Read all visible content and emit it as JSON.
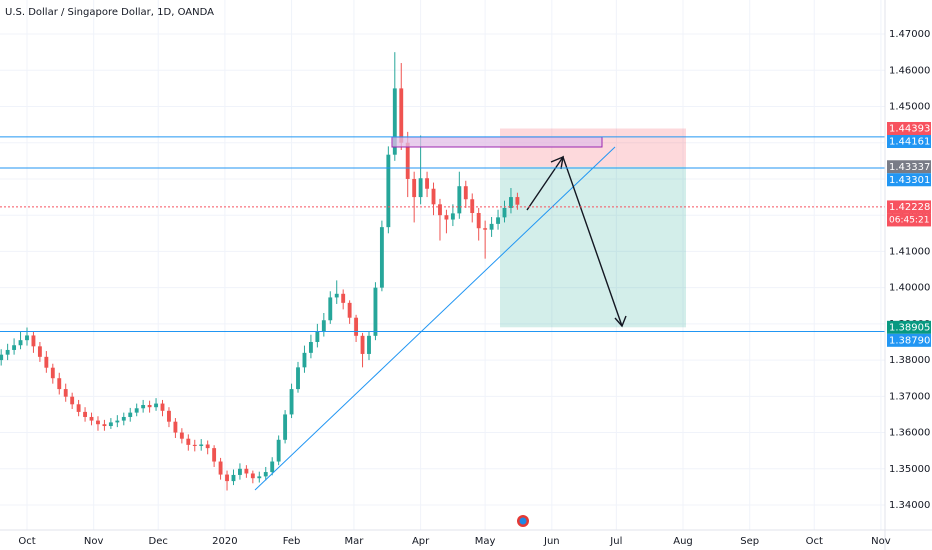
{
  "chart_data": {
    "type": "candlestick",
    "title": "U.S. Dollar / Singapore Dollar, 1D, OANDA",
    "x": [
      -12,
      -9,
      -6,
      -3,
      0,
      3,
      6,
      9,
      12,
      15,
      18,
      21,
      24,
      27,
      30,
      33,
      36,
      39,
      42,
      45,
      48,
      51,
      54,
      57,
      60,
      63,
      66,
      69,
      72,
      75,
      78,
      81,
      84,
      87,
      90,
      93,
      96,
      99,
      102,
      105,
      108,
      111,
      114,
      117,
      120,
      123,
      126,
      129,
      132,
      135,
      138,
      141,
      144,
      147,
      150,
      153,
      156,
      159,
      162,
      165,
      168,
      171,
      174,
      177,
      180,
      183,
      186,
      189,
      192,
      195,
      198,
      201,
      204,
      207,
      210,
      213,
      216,
      219,
      222,
      225,
      228
    ],
    "open": [
      1.38,
      1.3815,
      1.3828,
      1.3841,
      1.3855,
      1.3868,
      1.3838,
      1.3809,
      1.3779,
      1.375,
      1.372,
      1.3699,
      1.3678,
      1.3657,
      1.3643,
      1.3633,
      1.3623,
      1.3618,
      1.3628,
      1.3633,
      1.3643,
      1.3655,
      1.3667,
      1.3676,
      1.367,
      1.368,
      1.366,
      1.363,
      1.36,
      1.3583,
      1.3566,
      1.3563,
      1.3567,
      1.3557,
      1.352,
      1.3484,
      1.3466,
      1.3483,
      1.35,
      1.3487,
      1.3474,
      1.3479,
      1.3491,
      1.352,
      1.358,
      1.365,
      1.372,
      1.378,
      1.382,
      1.385,
      1.388,
      1.391,
      1.3973,
      1.3983,
      1.3958,
      1.3917,
      1.3867,
      1.3817,
      1.3867,
      1.4,
      1.4167,
      1.4367,
      1.455,
      1.44,
      1.43,
      1.425,
      1.4302,
      1.4273,
      1.423,
      1.42,
      1.4188,
      1.4205,
      1.428,
      1.4244,
      1.4206,
      1.4164,
      1.416,
      1.4176,
      1.4194,
      1.422,
      1.425
    ],
    "high": [
      1.383,
      1.3845,
      1.386,
      1.388,
      1.389,
      1.388,
      1.385,
      1.3825,
      1.379,
      1.3765,
      1.3735,
      1.371,
      1.369,
      1.367,
      1.3655,
      1.3645,
      1.3635,
      1.364,
      1.3648,
      1.3655,
      1.3668,
      1.368,
      1.369,
      1.3688,
      1.3695,
      1.369,
      1.367,
      1.364,
      1.3612,
      1.3595,
      1.358,
      1.3582,
      1.3578,
      1.3565,
      1.353,
      1.3495,
      1.3498,
      1.3515,
      1.351,
      1.3495,
      1.3492,
      1.3505,
      1.3532,
      1.3592,
      1.3662,
      1.3735,
      1.3795,
      1.384,
      1.387,
      1.39,
      1.393,
      1.399,
      1.402,
      1.3995,
      1.3965,
      1.3925,
      1.3875,
      1.388,
      1.4015,
      1.4185,
      1.439,
      1.465,
      1.462,
      1.443,
      1.432,
      1.442,
      1.432,
      1.429,
      1.4245,
      1.4215,
      1.423,
      1.432,
      1.4295,
      1.426,
      1.422,
      1.4185,
      1.4195,
      1.4215,
      1.424,
      1.4275,
      1.4262
    ],
    "low": [
      1.3785,
      1.38,
      1.3815,
      1.383,
      1.384,
      1.382,
      1.3795,
      1.3765,
      1.3735,
      1.3705,
      1.3685,
      1.3665,
      1.3645,
      1.363,
      1.362,
      1.3605,
      1.3605,
      1.361,
      1.3615,
      1.362,
      1.363,
      1.3645,
      1.3655,
      1.3655,
      1.366,
      1.3645,
      1.3615,
      1.3585,
      1.357,
      1.355,
      1.3548,
      1.355,
      1.354,
      1.3505,
      1.347,
      1.344,
      1.3455,
      1.347,
      1.3475,
      1.346,
      1.3462,
      1.3468,
      1.3482,
      1.351,
      1.357,
      1.364,
      1.371,
      1.3765,
      1.3805,
      1.3835,
      1.3865,
      1.39,
      1.3955,
      1.394,
      1.39,
      1.385,
      1.378,
      1.38,
      1.3855,
      1.399,
      1.415,
      1.435,
      1.438,
      1.425,
      1.418,
      1.423,
      1.425,
      1.42,
      1.413,
      1.415,
      1.417,
      1.419,
      1.422,
      1.418,
      1.413,
      1.408,
      1.414,
      1.416,
      1.418,
      1.4205,
      1.4215
    ],
    "close": [
      1.3815,
      1.3828,
      1.3841,
      1.3855,
      1.3868,
      1.3838,
      1.3809,
      1.3779,
      1.375,
      1.372,
      1.3699,
      1.3678,
      1.3657,
      1.3643,
      1.3633,
      1.3623,
      1.3618,
      1.3628,
      1.3633,
      1.3643,
      1.3655,
      1.3667,
      1.3676,
      1.367,
      1.368,
      1.366,
      1.363,
      1.36,
      1.3583,
      1.3566,
      1.3563,
      1.3567,
      1.3557,
      1.352,
      1.3484,
      1.3466,
      1.3483,
      1.35,
      1.3487,
      1.3474,
      1.3479,
      1.3491,
      1.352,
      1.358,
      1.365,
      1.372,
      1.378,
      1.382,
      1.385,
      1.388,
      1.391,
      1.3973,
      1.3983,
      1.3958,
      1.3917,
      1.3867,
      1.3817,
      1.3867,
      1.4,
      1.4167,
      1.4367,
      1.455,
      1.44,
      1.43,
      1.425,
      1.4302,
      1.4273,
      1.423,
      1.42,
      1.4188,
      1.4205,
      1.428,
      1.4244,
      1.4206,
      1.4164,
      1.416,
      1.4176,
      1.4194,
      1.422,
      1.425,
      1.4229
    ],
    "up_color": "#26a69a",
    "down_color": "#ef5350",
    "xlim": [
      -12.55,
      398.9
    ],
    "ylim": [
      1.3331,
      1.4794
    ],
    "grid": true,
    "xticks": [
      {
        "value": 0,
        "label": "Oct"
      },
      {
        "value": 31,
        "label": "Nov"
      },
      {
        "value": 61,
        "label": "Dec"
      },
      {
        "value": 92,
        "label": "2020"
      },
      {
        "value": 123,
        "label": "Feb"
      },
      {
        "value": 152,
        "label": "Mar"
      },
      {
        "value": 183,
        "label": "Apr"
      },
      {
        "value": 213,
        "label": "May"
      },
      {
        "value": 244,
        "label": "Jun"
      },
      {
        "value": 274,
        "label": "Jul"
      },
      {
        "value": 305,
        "label": "Aug"
      },
      {
        "value": 336,
        "label": "Sep"
      },
      {
        "value": 366,
        "label": "Oct"
      },
      {
        "value": 397,
        "label": "Nov"
      }
    ],
    "yticks": [
      {
        "value": 1.47,
        "label": "1.47000"
      },
      {
        "value": 1.46,
        "label": "1.46000"
      },
      {
        "value": 1.45,
        "label": "1.45000"
      },
      {
        "value": 1.44,
        "label": "1.44000"
      },
      {
        "value": 1.43,
        "label": "1.43000"
      },
      {
        "value": 1.42,
        "label": "1.42000"
      },
      {
        "value": 1.41,
        "label": "1.41000"
      },
      {
        "value": 1.4,
        "label": "1.40000"
      },
      {
        "value": 1.39,
        "label": "1.39000"
      },
      {
        "value": 1.38,
        "label": "1.38000"
      },
      {
        "value": 1.37,
        "label": "1.37000"
      },
      {
        "value": 1.36,
        "label": "1.36000"
      },
      {
        "value": 1.35,
        "label": "1.35000"
      },
      {
        "value": 1.34,
        "label": "1.34000"
      }
    ],
    "price_labels": [
      {
        "value": 1.44393,
        "label": "1.44393",
        "color": "#f7525f"
      },
      {
        "value": 1.44161,
        "label": "1.44161",
        "color": "#2196f3"
      },
      {
        "value": 1.43337,
        "label": "1.43337",
        "color": "#787b86"
      },
      {
        "value": 1.43301,
        "label": "1.43301",
        "color": "#2196f3"
      },
      {
        "value": 1.42228,
        "label": "1.42228",
        "color": "#f7525f"
      },
      {
        "value": 1.38905,
        "label": "1.38905",
        "color": "#089981"
      },
      {
        "value": 1.3879,
        "label": "1.38790",
        "color": "#2196f3"
      }
    ],
    "countdown": "06:45:21"
  }
}
